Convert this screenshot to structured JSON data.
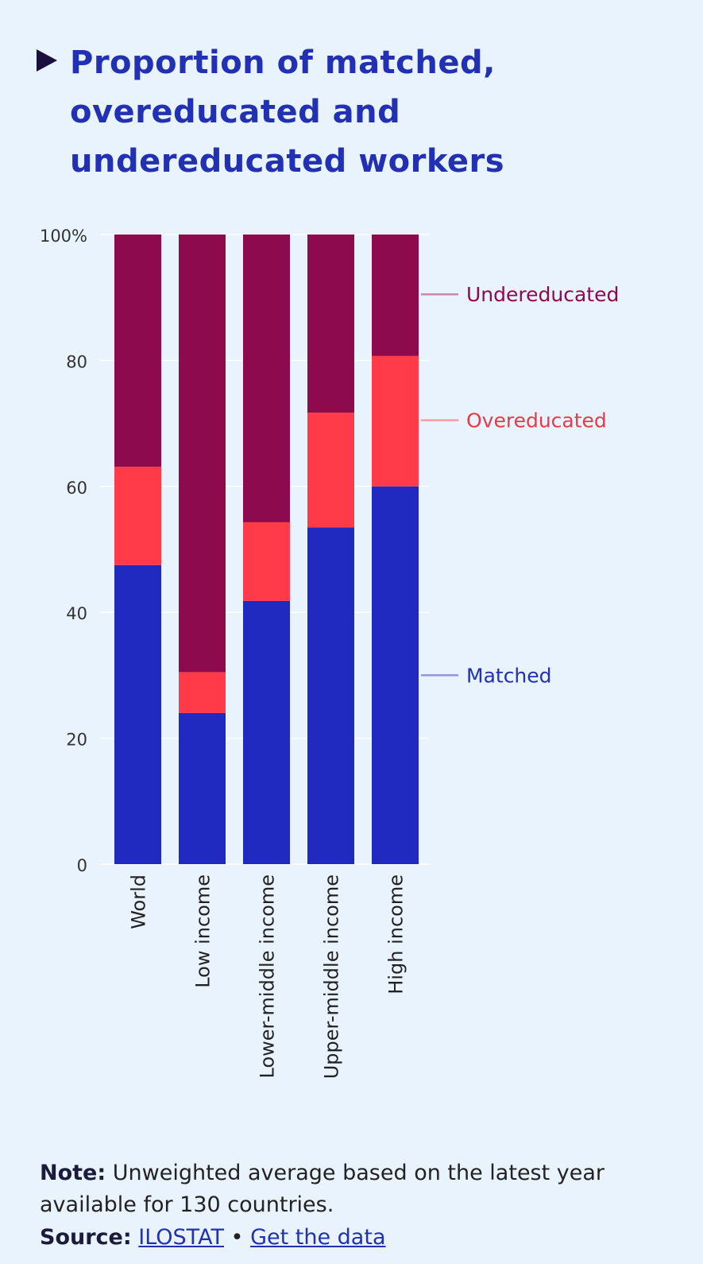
{
  "title": "Proportion of matched, overeducated and undereducated workers",
  "note_label": "Note:",
  "note_text": "Unweighted average based on the latest year available for 130 countries.",
  "source_label": "Source:",
  "source_link": "ILOSTAT",
  "source_sep": "•",
  "data_link": "Get the data",
  "colors": {
    "background": "#e8f3fe",
    "title": "#2230b3",
    "matched": "#2029c0",
    "overeducated": "#ff3b4a",
    "undereducated": "#8e0a4e",
    "matched_label": "#2230b3",
    "overeducated_label": "#e83a4a",
    "undereducated_label": "#8e0a4e"
  },
  "chart_data": {
    "type": "bar",
    "stacked": true,
    "title": "Proportion of matched, overeducated and undereducated workers",
    "xlabel": "",
    "ylabel": "",
    "ylim": [
      0,
      100
    ],
    "yticks": [
      0,
      20,
      40,
      60,
      80,
      100
    ],
    "ytick_labels": [
      "0",
      "20",
      "40",
      "60",
      "80",
      "100%"
    ],
    "grid": true,
    "categories": [
      "World",
      "Low income",
      "Lower-middle income",
      "Upper-middle income",
      "High income"
    ],
    "series": [
      {
        "name": "Matched",
        "values": [
          47.5,
          24.0,
          41.8,
          53.5,
          60.0
        ]
      },
      {
        "name": "Overeducated",
        "values": [
          15.6,
          6.5,
          12.5,
          18.2,
          20.7
        ]
      },
      {
        "name": "Undereducated",
        "values": [
          36.9,
          69.5,
          45.7,
          28.3,
          19.3
        ]
      }
    ],
    "legend": [
      {
        "name": "Undereducated",
        "y": 90.5
      },
      {
        "name": "Overeducated",
        "y": 70.5
      },
      {
        "name": "Matched",
        "y": 30.0
      }
    ]
  }
}
